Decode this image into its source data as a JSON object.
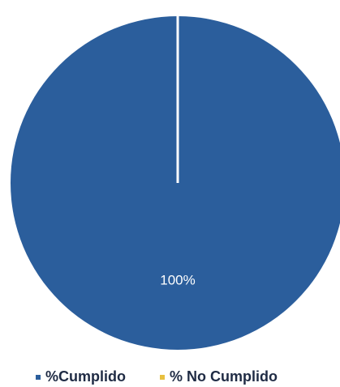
{
  "chart_data": {
    "type": "pie",
    "categories": [
      "%Cumplido",
      "% No Cumplido"
    ],
    "values": [
      100,
      0
    ],
    "data_labels": [
      "100%",
      ""
    ],
    "colors": [
      "#2b5e9c",
      "#e8c040"
    ],
    "legend_position": "bottom",
    "title": ""
  }
}
